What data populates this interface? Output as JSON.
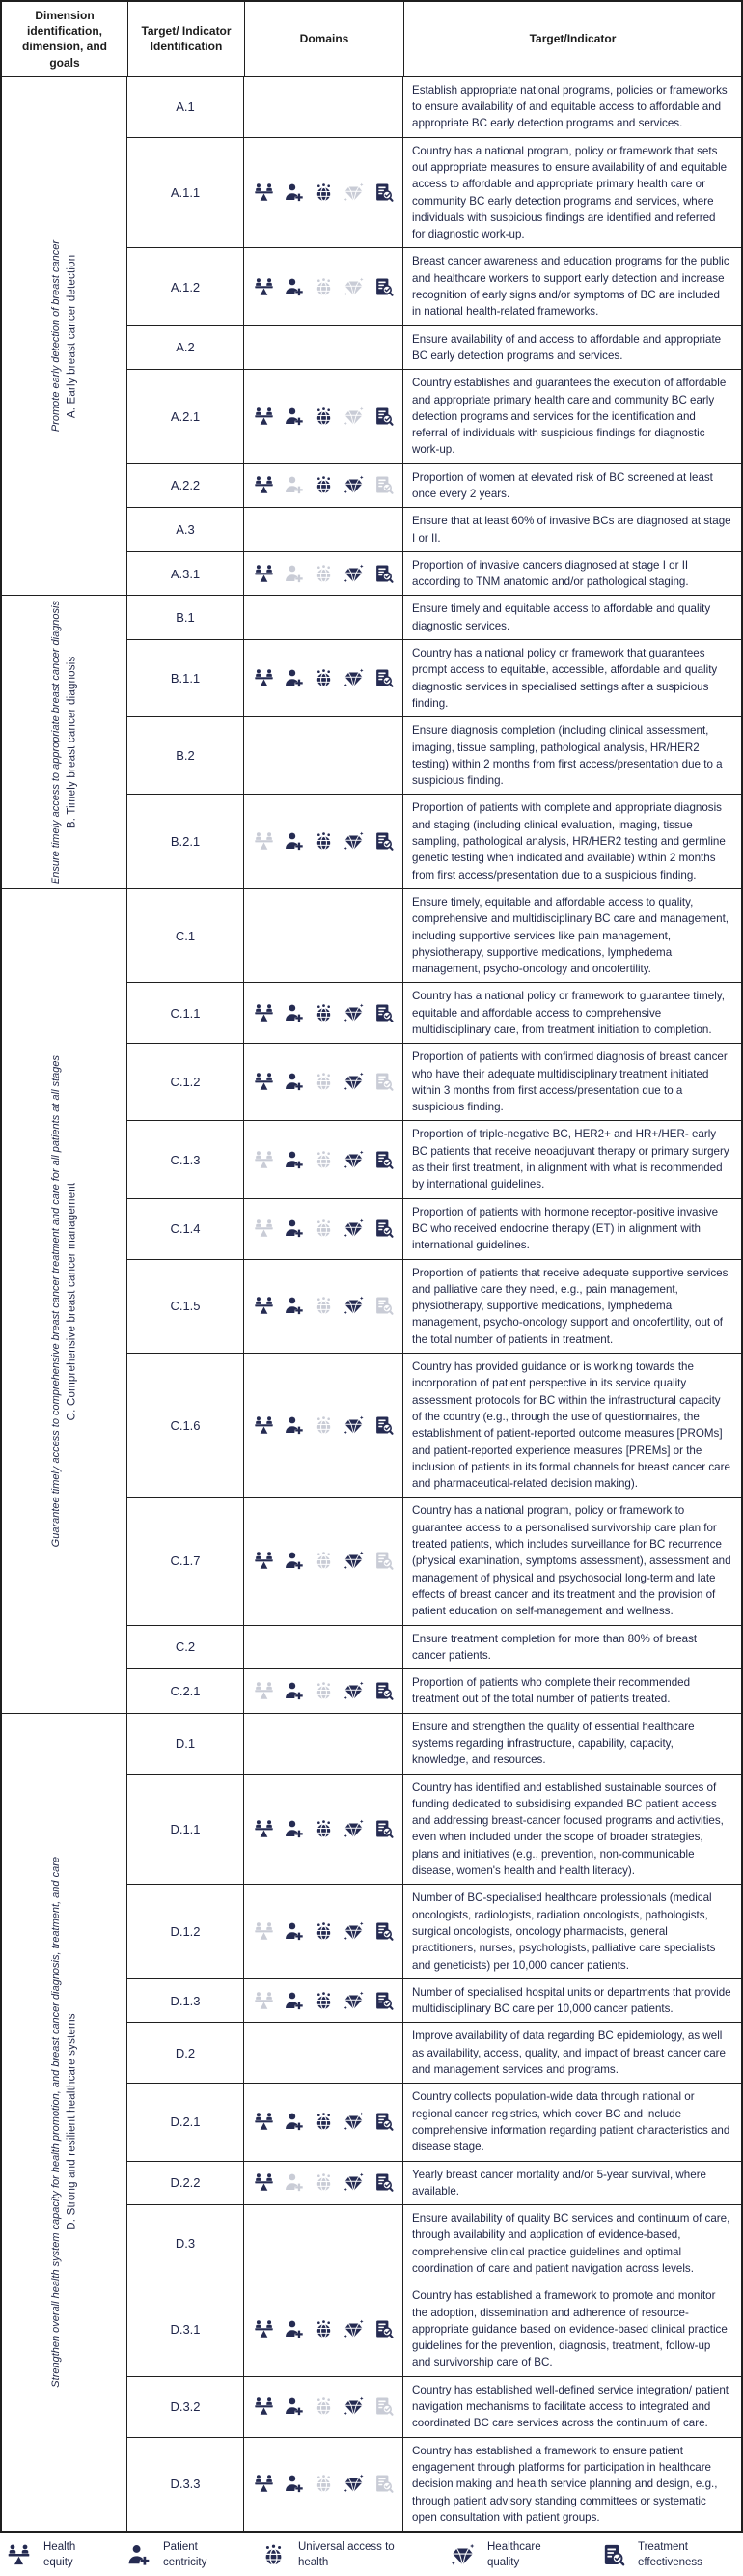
{
  "header": {
    "columns": [
      "Dimension identification, dimension, and goals",
      "Target/ Indicator Identification",
      "Domains",
      "Target/Indicator"
    ]
  },
  "colors": {
    "text": "#1f2545",
    "icon_active": "#252b52",
    "icon_inactive": "#c9ccd6",
    "border": "#1f1f1f"
  },
  "domains_legend": [
    {
      "id": "health-equity",
      "label": "Health equity"
    },
    {
      "id": "patient-centricity",
      "label": "Patient centricity"
    },
    {
      "id": "universal-access-to-health",
      "label": "Universal access to health"
    },
    {
      "id": "healthcare-quality",
      "label": "Healthcare quality"
    },
    {
      "id": "treatment-effectiveness",
      "label": "Treatment effectiveness"
    }
  ],
  "sections": [
    {
      "id": "A",
      "title": "A. Early breast cancer detection",
      "goal": "Promote early detection of breast cancer",
      "rows": [
        {
          "id": "A.1",
          "domains": null,
          "text": "Establish appropriate national programs, policies or frameworks to ensure availability of and equitable access to affordable and appropriate BC early detection programs and services."
        },
        {
          "id": "A.1.1",
          "domains": [
            1,
            1,
            1,
            0,
            1
          ],
          "text": "Country has a national program, policy or framework that sets out appropriate measures to ensure availability of and equitable access to affordable and appropriate primary health care or community BC early detection programs and services, where individuals with suspicious findings are identified and referred for diagnostic work-up."
        },
        {
          "id": "A.1.2",
          "domains": [
            1,
            1,
            0,
            0,
            1
          ],
          "text": "Breast cancer awareness and education programs for the public and healthcare workers to support early detection and increase recognition of early signs and/or symptoms of BC are included in national health-related frameworks."
        },
        {
          "id": "A.2",
          "domains": null,
          "text": "Ensure availability of and access to affordable and appropriate BC early detection programs and services."
        },
        {
          "id": "A.2.1",
          "domains": [
            1,
            1,
            1,
            0,
            1
          ],
          "text": "Country establishes and guarantees the execution of affordable and appropriate primary health care and community BC early detection programs and services for the identification and referral of individuals with suspicious findings for diagnostic work-up."
        },
        {
          "id": "A.2.2",
          "domains": [
            1,
            0,
            1,
            1,
            0
          ],
          "text": "Proportion of women at elevated risk of BC screened at least once every 2 years."
        },
        {
          "id": "A.3",
          "domains": null,
          "text": "Ensure that at least 60% of invasive BCs are diagnosed at stage I or II."
        },
        {
          "id": "A.3.1",
          "domains": [
            1,
            0,
            0,
            1,
            1
          ],
          "text": "Proportion of invasive cancers diagnosed at stage I or II according to TNM anatomic and/or pathological staging."
        }
      ]
    },
    {
      "id": "B",
      "title": "B. Timely breast cancer diagnosis",
      "goal": "Ensure timely access to appropriate breast cancer diagnosis",
      "rows": [
        {
          "id": "B.1",
          "domains": null,
          "text": "Ensure timely and equitable access to affordable and quality diagnostic services."
        },
        {
          "id": "B.1.1",
          "domains": [
            1,
            1,
            1,
            1,
            1
          ],
          "text": "Country has a national policy or framework that guarantees prompt access to equitable, accessible, affordable and quality diagnostic services in specialised settings after a suspicious finding."
        },
        {
          "id": "B.2",
          "domains": null,
          "text": "Ensure diagnosis completion (including clinical assessment, imaging, tissue sampling, pathological analysis, HR/HER2 testing) within 2 months from first access/presentation due to a suspicious finding."
        },
        {
          "id": "B.2.1",
          "domains": [
            0,
            1,
            1,
            1,
            1
          ],
          "text": "Proportion of patients with complete and appropriate diagnosis and staging (including clinical evaluation, imaging, tissue sampling, pathological analysis, HR/HER2 testing and germline genetic testing when indicated and available) within 2 months from first access/presentation due to a suspicious finding."
        }
      ]
    },
    {
      "id": "C",
      "title": "C. Comprehensive breast cancer management",
      "goal": "Guarantee timely access to comprehensive breast cancer treatment and care for all patients at all stages",
      "rows": [
        {
          "id": "C.1",
          "domains": null,
          "text": "Ensure timely, equitable and affordable access to quality, comprehensive and multidisciplinary BC care and management, including supportive services like pain management, physiotherapy, supportive medications, lymphedema management, psycho-oncology and oncofertility."
        },
        {
          "id": "C.1.1",
          "domains": [
            1,
            1,
            1,
            1,
            1
          ],
          "text": "Country has a national policy or framework to guarantee timely, equitable and affordable access to comprehensive multidisciplinary care, from treatment initiation to completion."
        },
        {
          "id": "C.1.2",
          "domains": [
            1,
            1,
            0,
            1,
            0
          ],
          "text": "Proportion of patients with confirmed diagnosis of breast cancer who have their adequate multidisciplinary treatment initiated within 3 months from first access/presentation due to a suspicious finding."
        },
        {
          "id": "C.1.3",
          "domains": [
            0,
            1,
            0,
            1,
            1
          ],
          "text": "Proportion of triple-negative BC, HER2+ and HR+/HER- early BC patients that receive neoadjuvant therapy or primary surgery as their first treatment, in alignment with what is recommended by international guidelines."
        },
        {
          "id": "C.1.4",
          "domains": [
            0,
            1,
            0,
            1,
            1
          ],
          "text": "Proportion of patients with hormone receptor-positive invasive BC who received endocrine therapy (ET) in alignment with international guidelines."
        },
        {
          "id": "C.1.5",
          "domains": [
            1,
            1,
            0,
            1,
            0
          ],
          "text": "Proportion of patients that receive adequate supportive services and palliative care they need, e.g., pain management, physiotherapy, supportive medications, lymphedema management, psycho-oncology support and oncofertility, out of the total number of patients in treatment."
        },
        {
          "id": "C.1.6",
          "domains": [
            1,
            1,
            0,
            1,
            1
          ],
          "text": "Country has provided guidance or is working towards the incorporation of patient perspective in its service quality assessment protocols for BC within the infrastructural capacity of the country (e.g., through the use of questionnaires, the establishment of patient-reported outcome measures [PROMs] and patient-reported experience measures [PREMs] or the inclusion of patients in its formal channels for breast cancer care and pharmaceutical-related decision making)."
        },
        {
          "id": "C.1.7",
          "domains": [
            1,
            1,
            0,
            1,
            0
          ],
          "text": "Country has a national program, policy or framework to guarantee access to a personalised survivorship care plan for treated patients, which includes surveillance for BC recurrence (physical examination, symptoms assessment), assessment and management of physical and psychosocial long-term and late effects of breast cancer and its treatment and the provision of patient education on self-management and wellness."
        },
        {
          "id": "C.2",
          "domains": null,
          "text": "Ensure treatment completion for more than 80% of breast cancer patients."
        },
        {
          "id": "C.2.1",
          "domains": [
            0,
            1,
            0,
            1,
            1
          ],
          "text": "Proportion of patients who complete their recommended treatment out of the total number of patients treated."
        }
      ]
    },
    {
      "id": "D",
      "title": "D. Strong and resilient healthcare systems",
      "goal": "Strengthen overall health system capacity for health promotion, and breast cancer diagnosis, treatment, and care",
      "rows": [
        {
          "id": "D.1",
          "domains": null,
          "text": "Ensure and strengthen the quality of essential healthcare systems regarding infrastructure, capability, capacity, knowledge, and resources."
        },
        {
          "id": "D.1.1",
          "domains": [
            1,
            1,
            1,
            1,
            1
          ],
          "text": "Country has identified and established sustainable sources of funding dedicated to subsidising expanded BC patient access and addressing breast-cancer focused programs and activities, even when included under the scope of broader strategies, plans and initiatives (e.g., prevention, non-communicable disease, women's health and health literacy)."
        },
        {
          "id": "D.1.2",
          "domains": [
            0,
            1,
            1,
            1,
            1
          ],
          "text": "Number of BC-specialised healthcare professionals (medical oncologists, radiologists, radiation oncologists, pathologists, surgical oncologists, oncology pharmacists, general practitioners, nurses, psychologists, palliative care specialists and geneticists) per 10,000 cancer patients."
        },
        {
          "id": "D.1.3",
          "domains": [
            0,
            1,
            1,
            1,
            1
          ],
          "text": "Number of specialised hospital units or departments that provide multidisciplinary BC care per 10,000 cancer patients."
        },
        {
          "id": "D.2",
          "domains": null,
          "text": "Improve availability of data regarding BC epidemiology, as well as availability, access, quality, and impact of breast cancer care and management services and programs."
        },
        {
          "id": "D.2.1",
          "domains": [
            1,
            1,
            1,
            1,
            1
          ],
          "text": "Country collects population-wide data through national or regional cancer registries, which cover BC and include comprehensive information regarding patient characteristics and disease stage."
        },
        {
          "id": "D.2.2",
          "domains": [
            1,
            0,
            0,
            1,
            1
          ],
          "text": "Yearly breast cancer mortality and/or 5-year survival, where available."
        },
        {
          "id": "D.3",
          "domains": null,
          "text": "Ensure availability of quality BC services and continuum of care, through availability and application of evidence-based, comprehensive clinical practice guidelines and optimal coordination of care and patient navigation across levels."
        },
        {
          "id": "D.3.1",
          "domains": [
            1,
            1,
            1,
            1,
            1
          ],
          "text": "Country has established a framework to promote and monitor the adoption, dissemination and adherence of resource-appropriate guidance based on evidence-based clinical practice guidelines for the prevention, diagnosis, treatment, follow-up and survivorship care of BC."
        },
        {
          "id": "D.3.2",
          "domains": [
            1,
            1,
            0,
            1,
            0
          ],
          "text": "Country has established well-defined service integration/ patient navigation mechanisms to facilitate access to integrated and coordinated BC care services across the continuum of care."
        },
        {
          "id": "D.3.3",
          "domains": [
            1,
            1,
            0,
            1,
            0
          ],
          "text": "Country has established a framework to ensure patient engagement through platforms for participation in healthcare decision making and health service planning and design, e.g., through patient advisory standing committees or systematic open consultation with patient groups."
        }
      ]
    }
  ]
}
